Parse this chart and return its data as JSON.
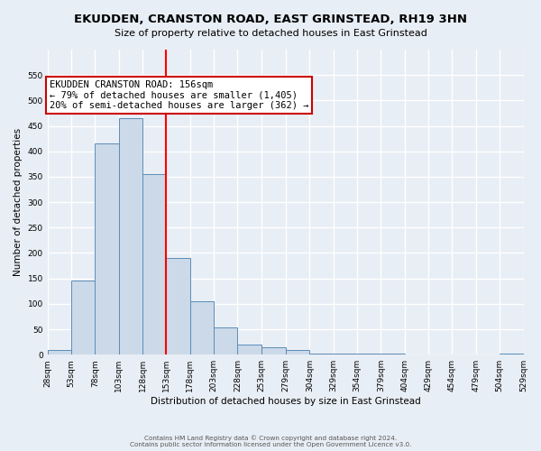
{
  "title": "EKUDDEN, CRANSTON ROAD, EAST GRINSTEAD, RH19 3HN",
  "subtitle": "Size of property relative to detached houses in East Grinstead",
  "xlabel": "Distribution of detached houses by size in East Grinstead",
  "ylabel": "Number of detached properties",
  "footer_line1": "Contains HM Land Registry data © Crown copyright and database right 2024.",
  "footer_line2": "Contains public sector information licensed under the Open Government Licence v3.0.",
  "bin_edges": [
    28,
    53,
    78,
    103,
    128,
    153,
    178,
    203,
    228,
    253,
    279,
    304,
    329,
    354,
    379,
    404,
    429,
    454,
    479,
    504,
    529
  ],
  "bin_heights": [
    10,
    145,
    415,
    465,
    355,
    190,
    105,
    53,
    20,
    15,
    10,
    2,
    2,
    2,
    2,
    0,
    0,
    0,
    0,
    3
  ],
  "bar_face_color": "#ccd9e8",
  "bar_edge_color": "#5b8db8",
  "vline_x": 153,
  "vline_color": "red",
  "annotation_text": "EKUDDEN CRANSTON ROAD: 156sqm\n← 79% of detached houses are smaller (1,405)\n20% of semi-detached houses are larger (362) →",
  "annotation_box_color": "white",
  "annotation_box_edge_color": "#cc0000",
  "ylim": [
    0,
    600
  ],
  "yticks": [
    0,
    50,
    100,
    150,
    200,
    250,
    300,
    350,
    400,
    450,
    500,
    550
  ],
  "bg_color": "#e8eef5",
  "grid_color": "white",
  "fig_width": 6.0,
  "fig_height": 5.0,
  "title_fontsize": 9.5,
  "subtitle_fontsize": 8,
  "axis_label_fontsize": 7.5,
  "tick_fontsize": 6.5,
  "annot_fontsize": 7.5
}
